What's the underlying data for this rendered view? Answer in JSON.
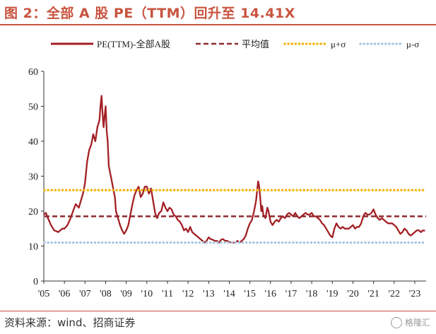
{
  "header": {
    "title": "图 2：全部 A 股 PE（TTM）回升至 14.41X"
  },
  "footer": {
    "source": "资料来源：wind、招商证券",
    "watermark": "格隆汇"
  },
  "chart_data": {
    "type": "line",
    "ylim": [
      0,
      60
    ],
    "yticks": [
      0,
      10,
      20,
      30,
      40,
      50,
      60
    ],
    "xlim": [
      2005.0,
      2023.55
    ],
    "xticks": [
      {
        "label": "'05",
        "x": 2005
      },
      {
        "label": "'06",
        "x": 2006
      },
      {
        "label": "'07",
        "x": 2007
      },
      {
        "label": "'08",
        "x": 2008
      },
      {
        "label": "'09",
        "x": 2009
      },
      {
        "label": "'10",
        "x": 2010
      },
      {
        "label": "'11",
        "x": 2011
      },
      {
        "label": "'12",
        "x": 2012
      },
      {
        "label": "'13",
        "x": 2013
      },
      {
        "label": "'14",
        "x": 2014
      },
      {
        "label": "'15",
        "x": 2015
      },
      {
        "label": "'16",
        "x": 2016
      },
      {
        "label": "'17",
        "x": 2017
      },
      {
        "label": "'18",
        "x": 2018
      },
      {
        "label": "'19",
        "x": 2019
      },
      {
        "label": "'20",
        "x": 2020
      },
      {
        "label": "'21",
        "x": 2021
      },
      {
        "label": "'22",
        "x": 2022
      },
      {
        "label": "'23",
        "x": 2023
      }
    ],
    "legend_position": "top",
    "series": [
      {
        "name": "PE(TTM)-全部A股",
        "color": "#a31f24",
        "style": "solid",
        "points": [
          [
            2005.0,
            19.0
          ],
          [
            2005.1,
            19.5
          ],
          [
            2005.2,
            18.0
          ],
          [
            2005.35,
            16.0
          ],
          [
            2005.5,
            14.5
          ],
          [
            2005.7,
            14.0
          ],
          [
            2005.9,
            15.0
          ],
          [
            2006.0,
            15.0
          ],
          [
            2006.15,
            16.0
          ],
          [
            2006.3,
            18.0
          ],
          [
            2006.45,
            20.5
          ],
          [
            2006.55,
            22.0
          ],
          [
            2006.7,
            21.0
          ],
          [
            2006.8,
            23.0
          ],
          [
            2006.9,
            25.0
          ],
          [
            2007.0,
            28.0
          ],
          [
            2007.1,
            34.0
          ],
          [
            2007.2,
            37.5
          ],
          [
            2007.3,
            39.0
          ],
          [
            2007.4,
            42.0
          ],
          [
            2007.5,
            40.0
          ],
          [
            2007.6,
            44.0
          ],
          [
            2007.7,
            46.0
          ],
          [
            2007.75,
            50.0
          ],
          [
            2007.8,
            53.0
          ],
          [
            2007.85,
            48.0
          ],
          [
            2007.9,
            44.0
          ],
          [
            2007.95,
            47.0
          ],
          [
            2008.0,
            50.0
          ],
          [
            2008.05,
            43.0
          ],
          [
            2008.1,
            40.0
          ],
          [
            2008.15,
            33.0
          ],
          [
            2008.25,
            30.0
          ],
          [
            2008.35,
            27.0
          ],
          [
            2008.45,
            24.0
          ],
          [
            2008.5,
            20.0
          ],
          [
            2008.6,
            18.0
          ],
          [
            2008.7,
            16.0
          ],
          [
            2008.8,
            14.5
          ],
          [
            2008.9,
            13.5
          ],
          [
            2009.0,
            14.5
          ],
          [
            2009.1,
            16.0
          ],
          [
            2009.2,
            19.0
          ],
          [
            2009.3,
            22.0
          ],
          [
            2009.4,
            24.5
          ],
          [
            2009.5,
            26.0
          ],
          [
            2009.6,
            27.0
          ],
          [
            2009.7,
            24.0
          ],
          [
            2009.8,
            25.0
          ],
          [
            2009.9,
            27.0
          ],
          [
            2010.0,
            27.0
          ],
          [
            2010.1,
            25.0
          ],
          [
            2010.2,
            26.5
          ],
          [
            2010.3,
            23.0
          ],
          [
            2010.4,
            19.5
          ],
          [
            2010.5,
            18.0
          ],
          [
            2010.6,
            19.5
          ],
          [
            2010.7,
            20.0
          ],
          [
            2010.8,
            22.5
          ],
          [
            2010.9,
            21.0
          ],
          [
            2011.0,
            20.0
          ],
          [
            2011.1,
            21.0
          ],
          [
            2011.2,
            20.5
          ],
          [
            2011.3,
            19.0
          ],
          [
            2011.4,
            18.5
          ],
          [
            2011.5,
            17.5
          ],
          [
            2011.6,
            17.0
          ],
          [
            2011.7,
            16.0
          ],
          [
            2011.8,
            14.5
          ],
          [
            2011.9,
            15.0
          ],
          [
            2012.0,
            14.0
          ],
          [
            2012.1,
            15.5
          ],
          [
            2012.2,
            14.0
          ],
          [
            2012.3,
            13.5
          ],
          [
            2012.4,
            13.0
          ],
          [
            2012.5,
            12.5
          ],
          [
            2012.6,
            12.0
          ],
          [
            2012.7,
            11.5
          ],
          [
            2012.8,
            11.0
          ],
          [
            2012.9,
            11.5
          ],
          [
            2013.0,
            12.5
          ],
          [
            2013.1,
            12.0
          ],
          [
            2013.2,
            11.8
          ],
          [
            2013.3,
            11.5
          ],
          [
            2013.4,
            11.5
          ],
          [
            2013.5,
            11.0
          ],
          [
            2013.6,
            11.8
          ],
          [
            2013.7,
            12.0
          ],
          [
            2013.8,
            11.5
          ],
          [
            2013.9,
            11.5
          ],
          [
            2014.0,
            11.2
          ],
          [
            2014.1,
            11.0
          ],
          [
            2014.2,
            11.0
          ],
          [
            2014.3,
            11.0
          ],
          [
            2014.4,
            11.5
          ],
          [
            2014.5,
            11.0
          ],
          [
            2014.6,
            11.5
          ],
          [
            2014.7,
            12.0
          ],
          [
            2014.8,
            13.0
          ],
          [
            2014.9,
            15.0
          ],
          [
            2015.0,
            16.5
          ],
          [
            2015.1,
            17.5
          ],
          [
            2015.2,
            20.0
          ],
          [
            2015.3,
            23.0
          ],
          [
            2015.35,
            26.0
          ],
          [
            2015.4,
            28.5
          ],
          [
            2015.45,
            27.0
          ],
          [
            2015.5,
            24.0
          ],
          [
            2015.55,
            20.0
          ],
          [
            2015.6,
            21.5
          ],
          [
            2015.65,
            19.0
          ],
          [
            2015.75,
            18.0
          ],
          [
            2015.85,
            21.0
          ],
          [
            2015.9,
            20.0
          ],
          [
            2016.0,
            17.0
          ],
          [
            2016.1,
            16.0
          ],
          [
            2016.2,
            17.0
          ],
          [
            2016.3,
            17.5
          ],
          [
            2016.4,
            17.0
          ],
          [
            2016.5,
            18.0
          ],
          [
            2016.6,
            18.5
          ],
          [
            2016.7,
            18.0
          ],
          [
            2016.8,
            19.0
          ],
          [
            2016.9,
            19.5
          ],
          [
            2017.0,
            19.0
          ],
          [
            2017.1,
            18.5
          ],
          [
            2017.2,
            19.5
          ],
          [
            2017.3,
            18.5
          ],
          [
            2017.4,
            18.0
          ],
          [
            2017.5,
            18.5
          ],
          [
            2017.6,
            19.0
          ],
          [
            2017.7,
            19.5
          ],
          [
            2017.8,
            19.0
          ],
          [
            2017.9,
            19.0
          ],
          [
            2018.0,
            19.5
          ],
          [
            2018.1,
            18.5
          ],
          [
            2018.2,
            18.5
          ],
          [
            2018.3,
            18.0
          ],
          [
            2018.4,
            17.5
          ],
          [
            2018.5,
            16.5
          ],
          [
            2018.6,
            16.0
          ],
          [
            2018.7,
            15.0
          ],
          [
            2018.8,
            14.0
          ],
          [
            2018.9,
            13.0
          ],
          [
            2019.0,
            12.5
          ],
          [
            2019.1,
            15.0
          ],
          [
            2019.2,
            16.5
          ],
          [
            2019.3,
            15.5
          ],
          [
            2019.4,
            15.0
          ],
          [
            2019.5,
            15.5
          ],
          [
            2019.6,
            15.0
          ],
          [
            2019.7,
            15.0
          ],
          [
            2019.8,
            15.0
          ],
          [
            2019.9,
            15.5
          ],
          [
            2020.0,
            16.0
          ],
          [
            2020.1,
            15.0
          ],
          [
            2020.2,
            15.5
          ],
          [
            2020.3,
            15.5
          ],
          [
            2020.4,
            16.5
          ],
          [
            2020.5,
            18.5
          ],
          [
            2020.6,
            19.5
          ],
          [
            2020.7,
            19.0
          ],
          [
            2020.8,
            19.0
          ],
          [
            2020.9,
            19.5
          ],
          [
            2021.0,
            20.5
          ],
          [
            2021.1,
            19.0
          ],
          [
            2021.2,
            18.0
          ],
          [
            2021.3,
            17.5
          ],
          [
            2021.4,
            18.0
          ],
          [
            2021.5,
            17.5
          ],
          [
            2021.6,
            17.0
          ],
          [
            2021.7,
            16.5
          ],
          [
            2021.8,
            16.5
          ],
          [
            2021.9,
            16.5
          ],
          [
            2022.0,
            16.0
          ],
          [
            2022.1,
            15.5
          ],
          [
            2022.2,
            14.5
          ],
          [
            2022.3,
            13.5
          ],
          [
            2022.4,
            14.0
          ],
          [
            2022.5,
            15.0
          ],
          [
            2022.6,
            14.5
          ],
          [
            2022.7,
            13.5
          ],
          [
            2022.8,
            13.0
          ],
          [
            2022.9,
            13.5
          ],
          [
            2023.0,
            14.0
          ],
          [
            2023.1,
            14.5
          ],
          [
            2023.2,
            14.5
          ],
          [
            2023.3,
            14.0
          ],
          [
            2023.4,
            14.5
          ],
          [
            2023.5,
            14.41
          ]
        ]
      },
      {
        "name": "平均值",
        "color": "#8e2a2d",
        "style": "dashed",
        "value": 18.5
      },
      {
        "name": "μ+σ",
        "color": "#f2b714",
        "style": "dotted",
        "value": 26.0
      },
      {
        "name": "μ-σ",
        "color": "#a9c7e2",
        "style": "dotted",
        "value": 11.0
      }
    ]
  }
}
